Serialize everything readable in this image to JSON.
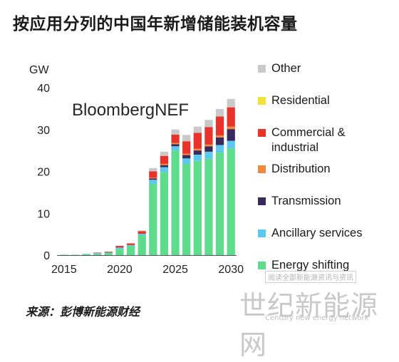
{
  "title": "按应用分列的中国年新增储能装机容量",
  "source": "来源：彭博新能源财经",
  "watermark": {
    "top": "阅读全部新能源资讯与资讯",
    "main": "世纪新能源网",
    "sub": "Century new energy network"
  },
  "chart_data": {
    "type": "bar",
    "stacked": true,
    "unit_label": "GW",
    "brand": "BloombergNEF",
    "ylim": [
      0,
      40
    ],
    "yticks": [
      0,
      10,
      20,
      30,
      40
    ],
    "x": [
      2015,
      2016,
      2017,
      2018,
      2019,
      2020,
      2021,
      2022,
      2023,
      2024,
      2025,
      2026,
      2027,
      2028,
      2029,
      2030
    ],
    "xtick_labels": [
      "2015",
      "2020",
      "2025",
      "2030"
    ],
    "xtick_values": [
      2015,
      2020,
      2025,
      2030
    ],
    "legend_position": "right",
    "series": [
      {
        "name": "Energy shifting",
        "color": "#5ddc8b",
        "values": [
          0.1,
          0.1,
          0.2,
          0.3,
          0.5,
          1.5,
          2.2,
          4.8,
          17.0,
          19.8,
          25.0,
          21.8,
          22.5,
          23.0,
          24.5,
          25.5
        ]
      },
      {
        "name": "Ancillary services",
        "color": "#5cc8f0",
        "values": [
          0,
          0,
          0.1,
          0.2,
          0.1,
          0.3,
          0.2,
          0.3,
          1.0,
          1.2,
          1.0,
          1.3,
          1.5,
          1.7,
          1.8,
          1.8
        ]
      },
      {
        "name": "Transmission",
        "color": "#3a2a5c",
        "values": [
          0,
          0,
          0,
          0,
          0,
          0,
          0,
          0,
          0.3,
          0.5,
          0.5,
          0.8,
          1.0,
          1.3,
          1.8,
          2.8
        ]
      },
      {
        "name": "Distribution",
        "color": "#f0883e",
        "values": [
          0,
          0,
          0,
          0,
          0,
          0,
          0,
          0,
          0.2,
          0.3,
          0.3,
          0.3,
          0.4,
          0.4,
          0.5,
          0.6
        ]
      },
      {
        "name": "Commercial &\nindustrial",
        "color": "#e8322a",
        "values": [
          0,
          0,
          0,
          0.1,
          0.2,
          0.4,
          0.4,
          0.6,
          1.5,
          1.9,
          2.0,
          3.0,
          3.8,
          4.2,
          4.5,
          4.6
        ]
      },
      {
        "name": "Residential",
        "color": "#f5e035",
        "values": [
          0,
          0,
          0,
          0,
          0,
          0,
          0,
          0,
          0,
          0,
          0,
          0,
          0,
          0,
          0,
          0
        ]
      },
      {
        "name": "Other",
        "color": "#c9c9c9",
        "values": [
          0,
          0,
          0,
          0,
          0,
          0,
          0,
          0.2,
          0.8,
          1.0,
          1.2,
          1.5,
          1.5,
          1.7,
          1.8,
          2.0
        ]
      }
    ]
  }
}
